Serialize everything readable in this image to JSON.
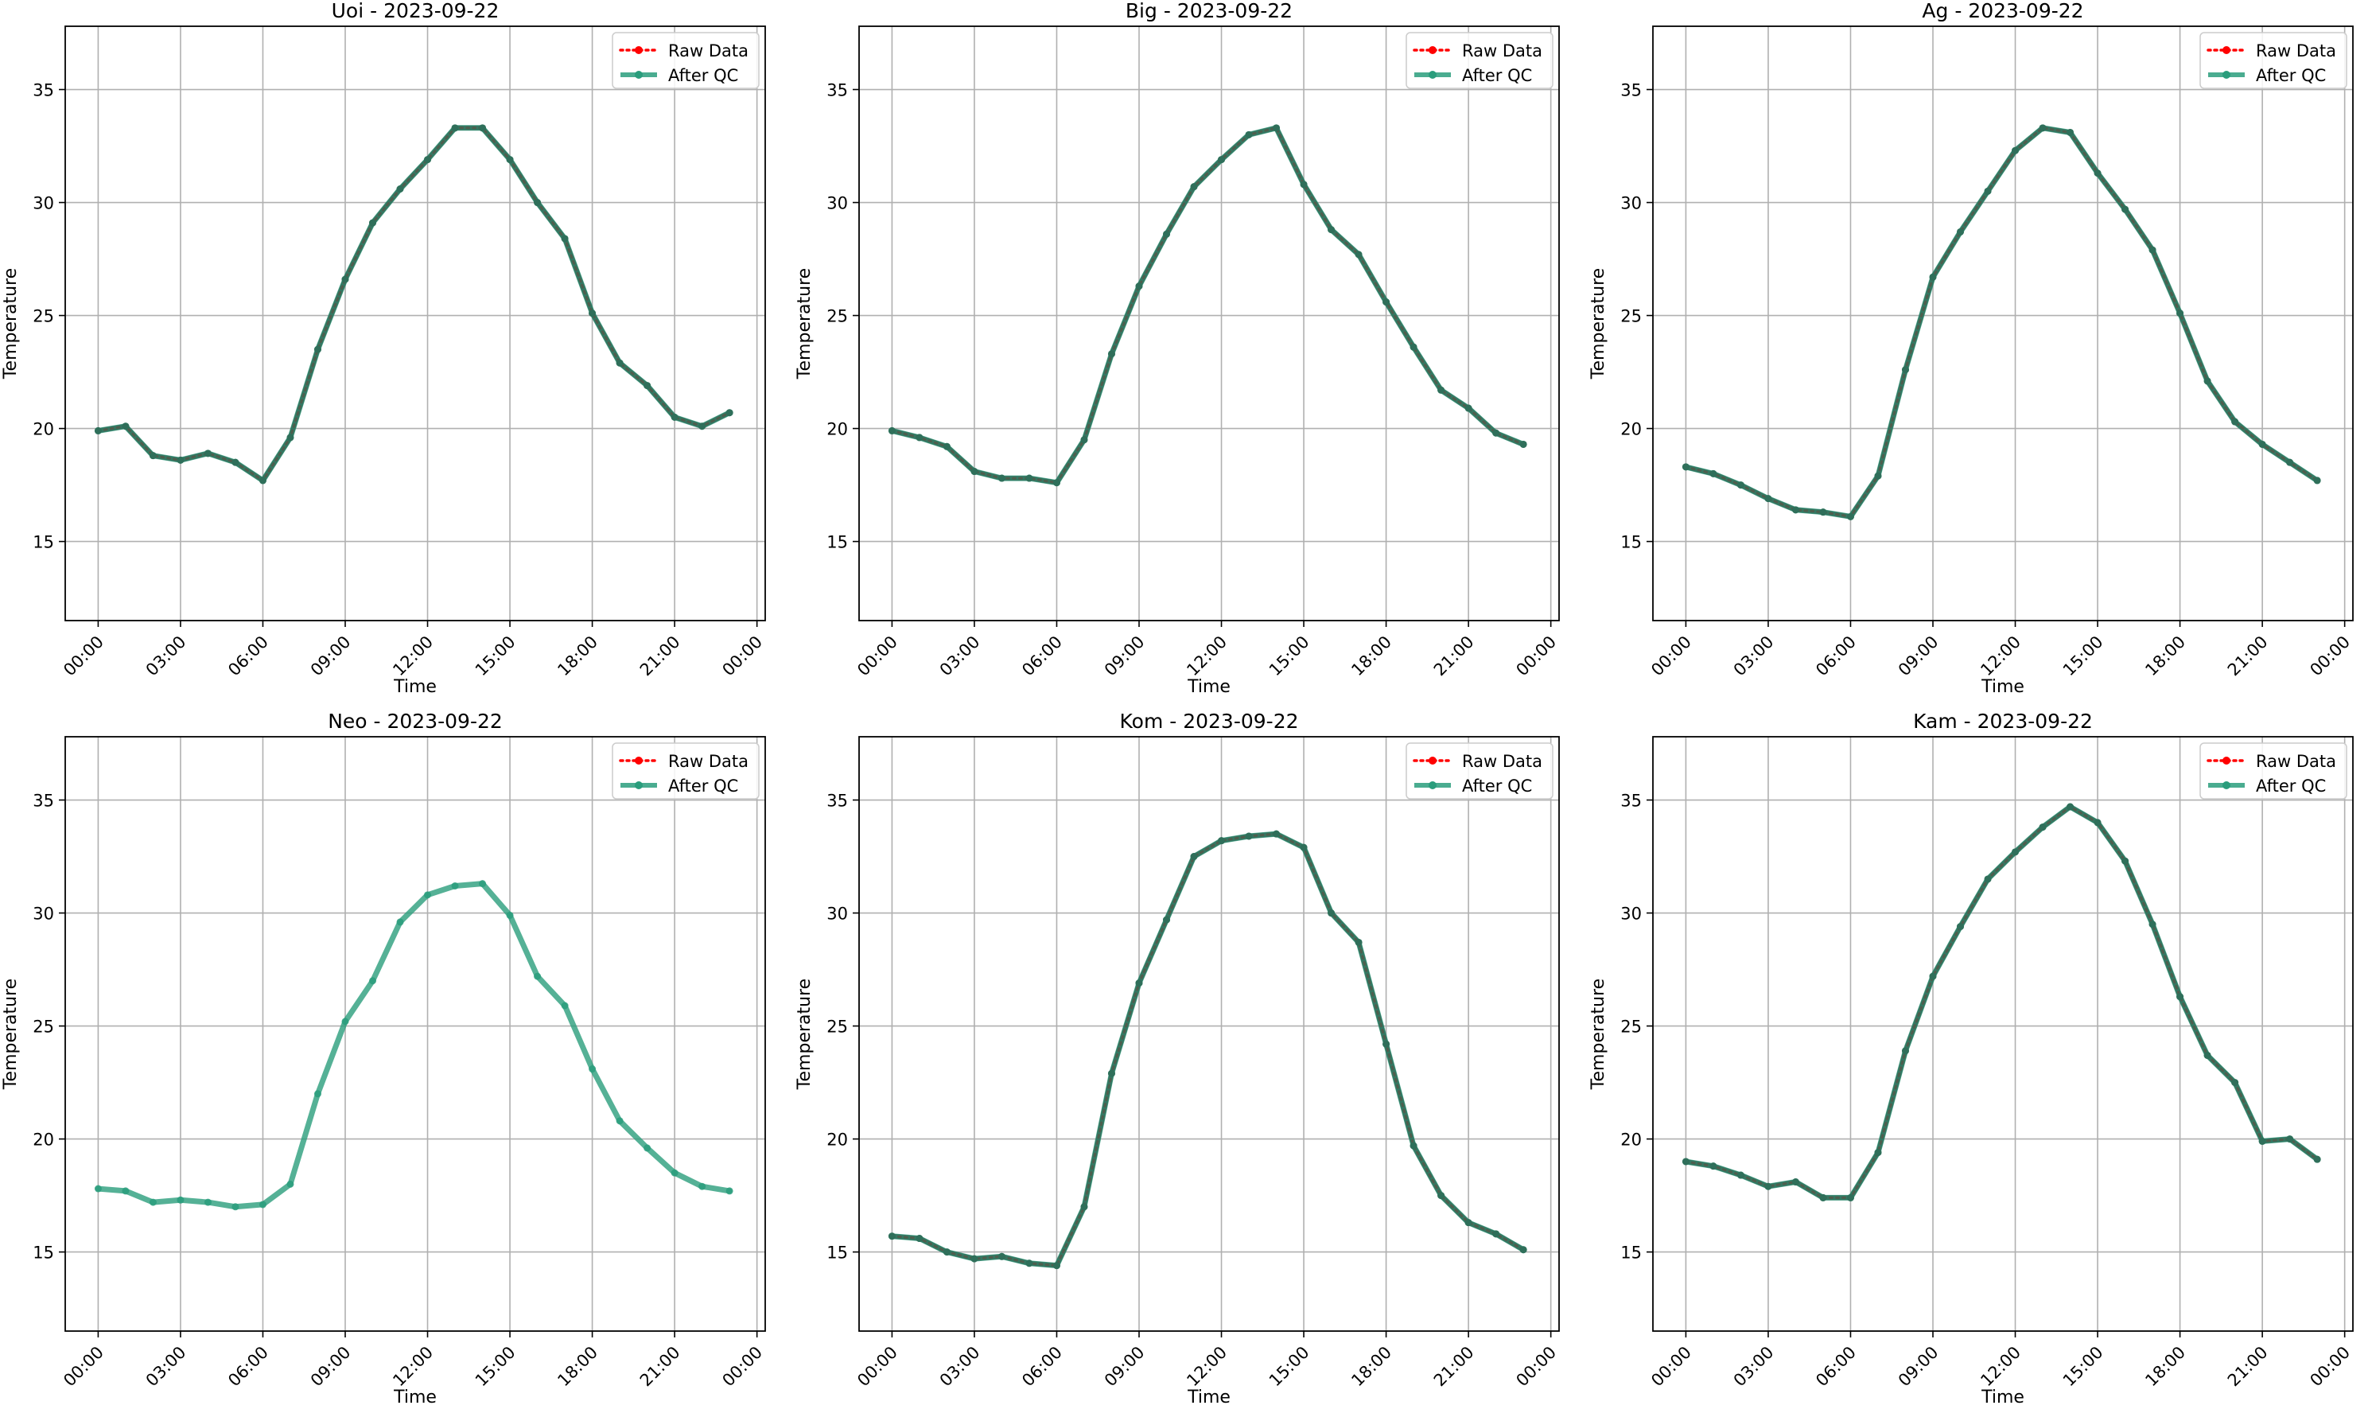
{
  "figure": {
    "shared_axes": {
      "xlabel": "Time",
      "ylabel": "Temperature",
      "xticks": [
        "00:00",
        "03:00",
        "06:00",
        "09:00",
        "12:00",
        "15:00",
        "18:00",
        "21:00",
        "00:00"
      ],
      "yticks": [
        15,
        20,
        25,
        30,
        35
      ],
      "ylim": [
        11.5,
        37.8
      ],
      "xlim_hours": [
        -1.2,
        24.3
      ],
      "grid": true,
      "legend_position": "top-right"
    },
    "legend": [
      {
        "label": "Raw Data",
        "color": "#ff0000",
        "style": "dotted-with-markers"
      },
      {
        "label": "After QC",
        "color": "#2a9d7c",
        "style": "solid-with-markers"
      }
    ],
    "colors": {
      "raw": "#ff0000",
      "qc": "#2a9d7c",
      "grid": "#b0b0b0"
    }
  },
  "chart_data": [
    {
      "type": "line",
      "title": "Uoi - 2023-09-22",
      "xlabel": "Time",
      "ylabel": "Temperature",
      "x": [
        "00:00",
        "01:00",
        "02:00",
        "03:00",
        "04:00",
        "05:00",
        "06:00",
        "07:00",
        "08:00",
        "09:00",
        "10:00",
        "11:00",
        "12:00",
        "13:00",
        "14:00",
        "15:00",
        "16:00",
        "17:00",
        "18:00",
        "19:00",
        "20:00",
        "21:00",
        "22:00",
        "23:00"
      ],
      "series": [
        {
          "name": "Raw Data",
          "values": [
            19.9,
            20.1,
            18.8,
            18.6,
            18.9,
            18.5,
            17.7,
            19.6,
            23.5,
            26.6,
            29.1,
            30.6,
            31.9,
            33.3,
            33.3,
            31.9,
            30.0,
            28.4,
            25.1,
            22.9,
            21.9,
            20.5,
            20.1,
            20.7
          ]
        },
        {
          "name": "After QC",
          "values": [
            19.9,
            20.1,
            18.8,
            18.6,
            18.9,
            18.5,
            17.7,
            19.6,
            23.5,
            26.6,
            29.1,
            30.6,
            31.9,
            33.3,
            33.3,
            31.9,
            30.0,
            28.4,
            25.1,
            22.9,
            21.9,
            20.5,
            20.1,
            20.7
          ]
        }
      ]
    },
    {
      "type": "line",
      "title": "Big - 2023-09-22",
      "xlabel": "Time",
      "ylabel": "Temperature",
      "x": [
        "00:00",
        "01:00",
        "02:00",
        "03:00",
        "04:00",
        "05:00",
        "06:00",
        "07:00",
        "08:00",
        "09:00",
        "10:00",
        "11:00",
        "12:00",
        "13:00",
        "14:00",
        "15:00",
        "16:00",
        "17:00",
        "18:00",
        "19:00",
        "20:00",
        "21:00",
        "22:00",
        "23:00"
      ],
      "series": [
        {
          "name": "Raw Data",
          "values": [
            19.9,
            19.6,
            19.2,
            18.1,
            17.8,
            17.8,
            17.6,
            19.5,
            23.3,
            26.3,
            28.6,
            30.7,
            31.9,
            33.0,
            33.3,
            30.8,
            28.8,
            27.7,
            25.6,
            23.6,
            21.7,
            20.9,
            19.8,
            19.3
          ]
        },
        {
          "name": "After QC",
          "values": [
            19.9,
            19.6,
            19.2,
            18.1,
            17.8,
            17.8,
            17.6,
            19.5,
            23.3,
            26.3,
            28.6,
            30.7,
            31.9,
            33.0,
            33.3,
            30.8,
            28.8,
            27.7,
            25.6,
            23.6,
            21.7,
            20.9,
            19.8,
            19.3
          ]
        }
      ]
    },
    {
      "type": "line",
      "title": "Ag - 2023-09-22",
      "xlabel": "Time",
      "ylabel": "Temperature",
      "x": [
        "00:00",
        "01:00",
        "02:00",
        "03:00",
        "04:00",
        "05:00",
        "06:00",
        "07:00",
        "08:00",
        "09:00",
        "10:00",
        "11:00",
        "12:00",
        "13:00",
        "14:00",
        "15:00",
        "16:00",
        "17:00",
        "18:00",
        "19:00",
        "20:00",
        "21:00",
        "22:00",
        "23:00"
      ],
      "series": [
        {
          "name": "Raw Data",
          "values": [
            18.3,
            18.0,
            17.5,
            16.9,
            16.4,
            16.3,
            16.1,
            17.9,
            22.6,
            26.7,
            28.7,
            30.5,
            32.3,
            33.3,
            33.1,
            31.3,
            29.7,
            27.9,
            25.1,
            22.1,
            20.3,
            19.3,
            18.5,
            17.7
          ]
        },
        {
          "name": "After QC",
          "values": [
            18.3,
            18.0,
            17.5,
            16.9,
            16.4,
            16.3,
            16.1,
            17.9,
            22.6,
            26.7,
            28.7,
            30.5,
            32.3,
            33.3,
            33.1,
            31.3,
            29.7,
            27.9,
            25.1,
            22.1,
            20.3,
            19.3,
            18.5,
            17.7
          ]
        }
      ]
    },
    {
      "type": "line",
      "title": "Neo - 2023-09-22",
      "xlabel": "Time",
      "ylabel": "Temperature",
      "x": [
        "00:00",
        "01:00",
        "02:00",
        "03:00",
        "04:00",
        "05:00",
        "06:00",
        "07:00",
        "08:00",
        "09:00",
        "10:00",
        "11:00",
        "12:00",
        "13:00",
        "14:00",
        "15:00",
        "16:00",
        "17:00",
        "18:00",
        "19:00",
        "20:00",
        "21:00",
        "22:00",
        "23:00"
      ],
      "series": [
        {
          "name": "After QC",
          "values": [
            17.8,
            17.7,
            17.2,
            17.3,
            17.2,
            17.0,
            17.1,
            18.0,
            22.0,
            25.2,
            27.0,
            29.6,
            30.8,
            31.2,
            31.3,
            29.9,
            27.2,
            25.9,
            23.1,
            20.8,
            19.6,
            18.5,
            17.9,
            17.7
          ]
        }
      ]
    },
    {
      "type": "line",
      "title": "Kom - 2023-09-22",
      "xlabel": "Time",
      "ylabel": "Temperature",
      "x": [
        "00:00",
        "01:00",
        "02:00",
        "03:00",
        "04:00",
        "05:00",
        "06:00",
        "07:00",
        "08:00",
        "09:00",
        "10:00",
        "11:00",
        "12:00",
        "13:00",
        "14:00",
        "15:00",
        "16:00",
        "17:00",
        "18:00",
        "19:00",
        "20:00",
        "21:00",
        "22:00",
        "23:00"
      ],
      "series": [
        {
          "name": "Raw Data",
          "values": [
            15.7,
            15.6,
            15.0,
            14.7,
            14.8,
            14.5,
            14.4,
            17.0,
            22.9,
            26.9,
            29.7,
            32.5,
            33.2,
            33.4,
            33.5,
            32.9,
            30.0,
            28.7,
            24.2,
            19.7,
            17.5,
            16.3,
            15.8,
            15.1
          ]
        },
        {
          "name": "After QC",
          "values": [
            15.7,
            15.6,
            15.0,
            14.7,
            14.8,
            14.5,
            14.4,
            17.0,
            22.9,
            26.9,
            29.7,
            32.5,
            33.2,
            33.4,
            33.5,
            32.9,
            30.0,
            28.7,
            24.2,
            19.7,
            17.5,
            16.3,
            15.8,
            15.1
          ]
        }
      ]
    },
    {
      "type": "line",
      "title": "Kam - 2023-09-22",
      "xlabel": "Time",
      "ylabel": "Temperature",
      "x": [
        "00:00",
        "01:00",
        "02:00",
        "03:00",
        "04:00",
        "05:00",
        "06:00",
        "07:00",
        "08:00",
        "09:00",
        "10:00",
        "11:00",
        "12:00",
        "13:00",
        "14:00",
        "15:00",
        "16:00",
        "17:00",
        "18:00",
        "19:00",
        "20:00",
        "21:00",
        "22:00",
        "23:00"
      ],
      "series": [
        {
          "name": "Raw Data",
          "values": [
            19.0,
            18.8,
            18.4,
            17.9,
            18.1,
            17.4,
            17.4,
            19.4,
            23.9,
            27.2,
            29.4,
            31.5,
            32.7,
            33.8,
            34.7,
            34.0,
            32.3,
            29.5,
            26.3,
            23.7,
            22.5,
            19.9,
            20.0,
            19.1
          ]
        },
        {
          "name": "After QC",
          "values": [
            19.0,
            18.8,
            18.4,
            17.9,
            18.1,
            17.4,
            17.4,
            19.4,
            23.9,
            27.2,
            29.4,
            31.5,
            32.7,
            33.8,
            34.7,
            34.0,
            32.3,
            29.5,
            26.3,
            23.7,
            22.5,
            19.9,
            20.0,
            19.1
          ]
        }
      ]
    }
  ]
}
